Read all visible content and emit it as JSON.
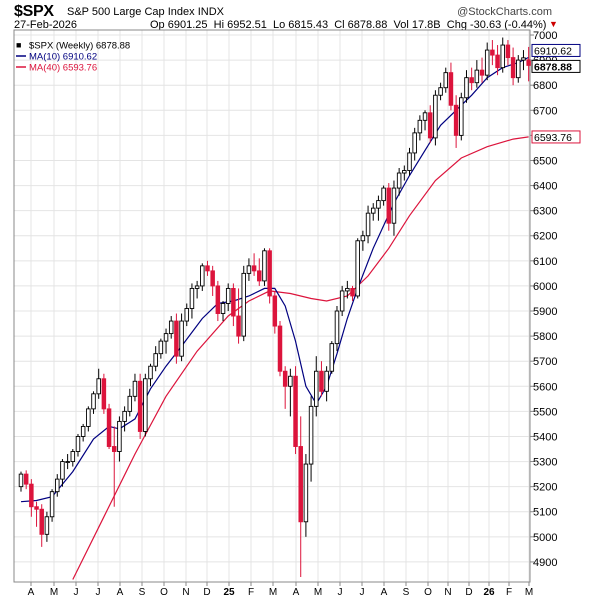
{
  "header": {
    "symbol": "$SPX",
    "description": "S&P 500 Large Cap Index",
    "exchange": "INDX",
    "watermark": "@StockCharts.com",
    "date": "27-Feb-2026",
    "open_label": "Op",
    "open": "6901.25",
    "high_label": "Hi",
    "high": "6952.51",
    "low_label": "Lo",
    "low": "6815.43",
    "close_label": "Cl",
    "close": "6878.88",
    "vol_label": "Vol",
    "vol": "17.8B",
    "chg_label": "Chg",
    "chg": "-30.63 (-0.44%)"
  },
  "chart_data": {
    "type": "candlestick",
    "title": "$SPX S&P 500 Large Cap Index INDX",
    "ylim": [
      4820,
      7020
    ],
    "y_ticks": [
      4900,
      5000,
      5100,
      5200,
      5300,
      5400,
      5500,
      5600,
      5700,
      5800,
      5900,
      6000,
      6100,
      6200,
      6300,
      6400,
      6500,
      6600,
      6700,
      6800,
      6900,
      7000
    ],
    "x_ticks": [
      "A",
      "M",
      "J",
      "J",
      "A",
      "S",
      "O",
      "N",
      "D",
      "25",
      "F",
      "M",
      "A",
      "M",
      "J",
      "J",
      "A",
      "S",
      "O",
      "N",
      "D",
      "26",
      "F",
      "M"
    ],
    "grid": true,
    "legend": [
      {
        "name": "$SPX (Weekly) 6878.88",
        "color": "#000000"
      },
      {
        "name": "MA(10) 6910.62",
        "color": "#000080"
      },
      {
        "name": "MA(40) 6593.76",
        "color": "#dc143c"
      }
    ],
    "price_labels": [
      {
        "value": 6910.62,
        "text": "6910.62"
      },
      {
        "value": 6878.88,
        "text": "6878.88"
      },
      {
        "value": 6593.76,
        "text": "6593.76"
      }
    ],
    "colors": {
      "up": "#000000",
      "down": "#dc143c",
      "ma10": "#000080",
      "ma40": "#dc143c",
      "grid": "#e4e4e4"
    },
    "series": [
      {
        "name": "$SPX (Weekly)",
        "ohlc": [
          [
            5200,
            5260,
            5180,
            5250
          ],
          [
            5250,
            5265,
            5190,
            5210
          ],
          [
            5210,
            5230,
            5080,
            5120
          ],
          [
            5120,
            5140,
            5040,
            5110
          ],
          [
            5110,
            5130,
            4960,
            5010
          ],
          [
            5010,
            5100,
            4980,
            5080
          ],
          [
            5080,
            5190,
            5060,
            5180
          ],
          [
            5180,
            5250,
            5160,
            5230
          ],
          [
            5230,
            5310,
            5200,
            5300
          ],
          [
            5300,
            5330,
            5270,
            5300
          ],
          [
            5300,
            5350,
            5280,
            5340
          ],
          [
            5340,
            5410,
            5320,
            5400
          ],
          [
            5400,
            5450,
            5380,
            5440
          ],
          [
            5440,
            5520,
            5420,
            5510
          ],
          [
            5510,
            5580,
            5490,
            5570
          ],
          [
            5570,
            5670,
            5550,
            5630
          ],
          [
            5630,
            5650,
            5490,
            5510
          ],
          [
            5510,
            5530,
            5350,
            5360
          ],
          [
            5360,
            5440,
            5120,
            5340
          ],
          [
            5340,
            5480,
            5300,
            5460
          ],
          [
            5460,
            5520,
            5420,
            5500
          ],
          [
            5500,
            5590,
            5480,
            5560
          ],
          [
            5560,
            5650,
            5540,
            5620
          ],
          [
            5620,
            5650,
            5390,
            5420
          ],
          [
            5420,
            5650,
            5400,
            5630
          ],
          [
            5630,
            5690,
            5600,
            5680
          ],
          [
            5680,
            5760,
            5660,
            5730
          ],
          [
            5730,
            5790,
            5710,
            5780
          ],
          [
            5780,
            5830,
            5730,
            5810
          ],
          [
            5810,
            5880,
            5790,
            5860
          ],
          [
            5860,
            5890,
            5690,
            5720
          ],
          [
            5720,
            5890,
            5700,
            5860
          ],
          [
            5860,
            5930,
            5840,
            5910
          ],
          [
            5910,
            6010,
            5870,
            5990
          ],
          [
            5990,
            6020,
            5950,
            6000
          ],
          [
            6000,
            6090,
            5980,
            6080
          ],
          [
            6080,
            6100,
            6040,
            6060
          ],
          [
            6060,
            6080,
            5960,
            6000
          ],
          [
            6000,
            6020,
            5860,
            5890
          ],
          [
            5890,
            5940,
            5860,
            5930
          ],
          [
            5930,
            6010,
            5900,
            5990
          ],
          [
            5990,
            6010,
            5840,
            5880
          ],
          [
            5880,
            5990,
            5770,
            5800
          ],
          [
            5800,
            6080,
            5780,
            6050
          ],
          [
            6050,
            6110,
            6020,
            6080
          ],
          [
            6080,
            6130,
            6040,
            6060
          ],
          [
            6060,
            6110,
            6000,
            6020
          ],
          [
            6020,
            6150,
            6000,
            6140
          ],
          [
            6140,
            6150,
            5930,
            5960
          ],
          [
            5960,
            5980,
            5810,
            5840
          ],
          [
            5840,
            5860,
            5640,
            5660
          ],
          [
            5660,
            5680,
            5510,
            5600
          ],
          [
            5600,
            5670,
            5480,
            5640
          ],
          [
            5640,
            5680,
            5330,
            5360
          ],
          [
            5360,
            5480,
            4840,
            5060
          ],
          [
            5060,
            5330,
            5000,
            5290
          ],
          [
            5290,
            5560,
            5220,
            5520
          ],
          [
            5520,
            5720,
            5480,
            5660
          ],
          [
            5660,
            5700,
            5560,
            5580
          ],
          [
            5580,
            5680,
            5540,
            5660
          ],
          [
            5660,
            5780,
            5650,
            5770
          ],
          [
            5770,
            5920,
            5740,
            5900
          ],
          [
            5900,
            6000,
            5880,
            5980
          ],
          [
            5980,
            6020,
            5950,
            5990
          ],
          [
            5990,
            6000,
            5940,
            5960
          ],
          [
            5960,
            6190,
            5950,
            6180
          ],
          [
            6180,
            6220,
            6140,
            6200
          ],
          [
            6200,
            6320,
            6170,
            6290
          ],
          [
            6290,
            6330,
            6260,
            6310
          ],
          [
            6310,
            6360,
            6260,
            6340
          ],
          [
            6340,
            6400,
            6320,
            6390
          ],
          [
            6390,
            6410,
            6220,
            6250
          ],
          [
            6250,
            6420,
            6200,
            6390
          ],
          [
            6390,
            6470,
            6360,
            6450
          ],
          [
            6450,
            6480,
            6420,
            6460
          ],
          [
            6460,
            6550,
            6440,
            6530
          ],
          [
            6530,
            6630,
            6500,
            6610
          ],
          [
            6610,
            6680,
            6580,
            6660
          ],
          [
            6660,
            6700,
            6620,
            6690
          ],
          [
            6690,
            6720,
            6570,
            6590
          ],
          [
            6590,
            6780,
            6560,
            6760
          ],
          [
            6760,
            6810,
            6740,
            6790
          ],
          [
            6790,
            6870,
            6770,
            6850
          ],
          [
            6850,
            6890,
            6700,
            6720
          ],
          [
            6720,
            6760,
            6550,
            6600
          ],
          [
            6600,
            6770,
            6580,
            6750
          ],
          [
            6750,
            6860,
            6730,
            6830
          ],
          [
            6830,
            6870,
            6780,
            6810
          ],
          [
            6810,
            6900,
            6790,
            6860
          ],
          [
            6860,
            6910,
            6810,
            6840
          ],
          [
            6840,
            6970,
            6820,
            6940
          ],
          [
            6940,
            6980,
            6880,
            6920
          ],
          [
            6920,
            6960,
            6840,
            6870
          ],
          [
            6870,
            6990,
            6850,
            6960
          ],
          [
            6960,
            6980,
            6880,
            6910
          ],
          [
            6910,
            6950,
            6800,
            6830
          ],
          [
            6830,
            6920,
            6810,
            6900
          ],
          [
            6900,
            6940,
            6860,
            6909
          ],
          [
            6901.25,
            6952.51,
            6815.43,
            6878.88
          ]
        ]
      },
      {
        "name": "MA(10)",
        "values": [
          [
            0,
            5140
          ],
          [
            3,
            5145
          ],
          [
            6,
            5160
          ],
          [
            10,
            5260
          ],
          [
            14,
            5390
          ],
          [
            17,
            5440
          ],
          [
            19,
            5430
          ],
          [
            22,
            5470
          ],
          [
            25,
            5590
          ],
          [
            28,
            5680
          ],
          [
            31,
            5760
          ],
          [
            35,
            5870
          ],
          [
            38,
            5930
          ],
          [
            41,
            5940
          ],
          [
            44,
            5960
          ],
          [
            47,
            5990
          ],
          [
            49,
            5990
          ],
          [
            51,
            5920
          ],
          [
            53,
            5780
          ],
          [
            55,
            5600
          ],
          [
            57,
            5530
          ],
          [
            59,
            5600
          ],
          [
            61,
            5730
          ],
          [
            63,
            5870
          ],
          [
            65,
            5990
          ],
          [
            68,
            6150
          ],
          [
            72,
            6330
          ],
          [
            75,
            6440
          ],
          [
            78,
            6540
          ],
          [
            81,
            6640
          ],
          [
            84,
            6700
          ],
          [
            87,
            6760
          ],
          [
            90,
            6830
          ],
          [
            93,
            6870
          ],
          [
            96,
            6890
          ],
          [
            98,
            6910.62
          ]
        ]
      },
      {
        "name": "MA(40)",
        "values": [
          [
            10,
            4830
          ],
          [
            16,
            5080
          ],
          [
            22,
            5330
          ],
          [
            28,
            5560
          ],
          [
            34,
            5740
          ],
          [
            40,
            5880
          ],
          [
            44,
            5940
          ],
          [
            48,
            5980
          ],
          [
            52,
            5970
          ],
          [
            56,
            5950
          ],
          [
            59,
            5940
          ],
          [
            63,
            5960
          ],
          [
            67,
            6040
          ],
          [
            71,
            6150
          ],
          [
            75,
            6280
          ],
          [
            80,
            6420
          ],
          [
            85,
            6510
          ],
          [
            90,
            6555
          ],
          [
            95,
            6585
          ],
          [
            98,
            6593.76
          ]
        ]
      }
    ]
  }
}
